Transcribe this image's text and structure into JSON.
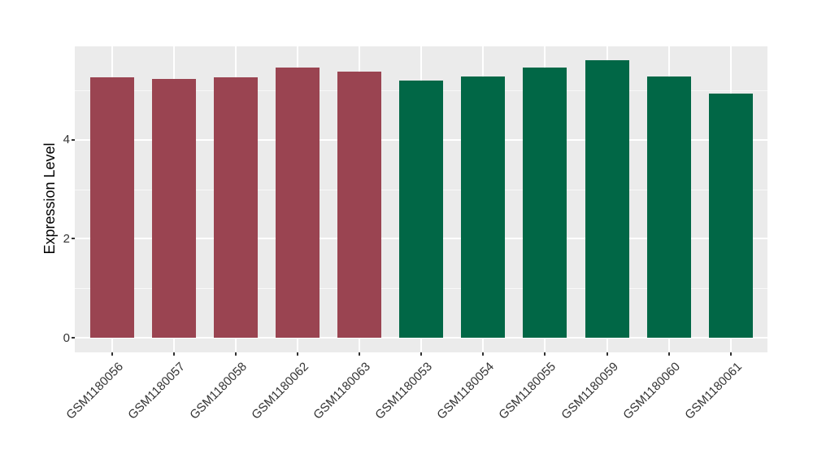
{
  "figure": {
    "background": "#FFFFFF"
  },
  "chart_data": {
    "type": "bar",
    "title": "",
    "xlabel": "",
    "ylabel": "Expression Level",
    "categories": [
      "GSM1180056",
      "GSM1180057",
      "GSM1180058",
      "GSM1180062",
      "GSM1180063",
      "GSM1180053",
      "GSM1180054",
      "GSM1180055",
      "GSM1180059",
      "GSM1180060",
      "GSM1180061"
    ],
    "values": [
      5.26,
      5.23,
      5.26,
      5.45,
      5.37,
      5.19,
      5.27,
      5.45,
      5.61,
      5.28,
      4.93
    ],
    "bar_colors": [
      "#9A4451",
      "#9A4451",
      "#9A4451",
      "#9A4451",
      "#9A4451",
      "#016746",
      "#016746",
      "#016746",
      "#016746",
      "#016746",
      "#016746"
    ],
    "yticks": [
      0,
      2,
      4
    ],
    "yticks_minor": [
      1,
      3,
      5
    ],
    "ylim": [
      -0.3,
      5.89
    ],
    "grid": true,
    "legend": "none",
    "style": {
      "panel_background": "#EBEBEB",
      "grid_color": "#FFFFFF",
      "tick_text_color": "#333333",
      "axis_title_color": "#000000",
      "tick_mark_color": "#333333"
    }
  }
}
